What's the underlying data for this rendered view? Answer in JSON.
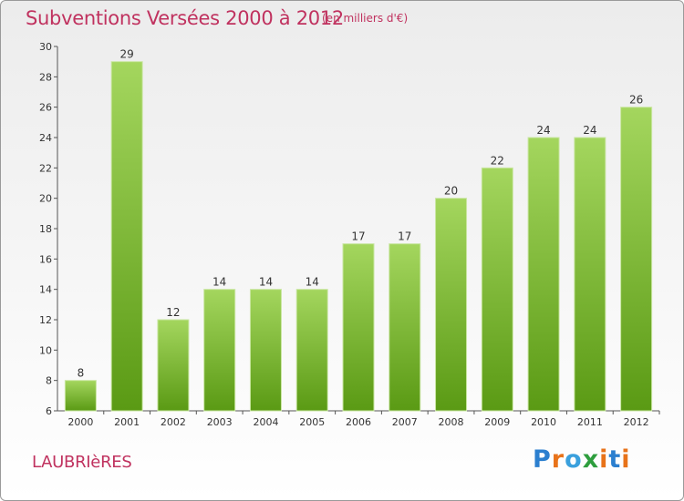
{
  "title": "Subventions Versées 2000 à 2012",
  "subtitle": "(en milliers d'€)",
  "commune": "LAUBRIèRES",
  "logo": {
    "text": "Proxiti",
    "colors": [
      "#2b7fcf",
      "#e8731a",
      "#3aa0dd",
      "#2e9e3e",
      "#e8731a",
      "#2b7fcf",
      "#e8731a"
    ]
  },
  "colors": {
    "bar_light": "#a4d65e",
    "bar_dark": "#5a9a14",
    "title": "#c0325f"
  },
  "chart_data": {
    "type": "bar",
    "title": "Subventions Versées 2000 à 2012",
    "subtitle": "(en milliers d'€)",
    "categories": [
      "2000",
      "2001",
      "2002",
      "2003",
      "2004",
      "2005",
      "2006",
      "2007",
      "2008",
      "2009",
      "2010",
      "2011",
      "2012"
    ],
    "values": [
      8,
      29,
      12,
      14,
      14,
      14,
      17,
      17,
      20,
      22,
      24,
      24,
      26
    ],
    "ylim": [
      6,
      30
    ],
    "yticks": [
      6,
      8,
      10,
      12,
      14,
      16,
      18,
      20,
      22,
      24,
      26,
      28,
      30
    ],
    "grid": false,
    "data_labels": true
  }
}
